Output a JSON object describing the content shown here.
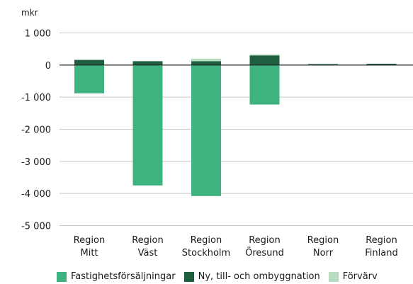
{
  "chart_data": {
    "type": "bar",
    "stacked": true,
    "unit_label": "mkr",
    "categories": [
      [
        "Region",
        "Mitt"
      ],
      [
        "Region",
        "Väst"
      ],
      [
        "Region",
        "Stockholm"
      ],
      [
        "Region",
        "Öresund"
      ],
      [
        "Region",
        "Norr"
      ],
      [
        "Region",
        "Finland"
      ]
    ],
    "series": [
      {
        "name": "Fastighetsförsäljningar",
        "color": "#3fb37f",
        "values": [
          -880,
          -3750,
          -4080,
          -1230,
          0,
          0
        ]
      },
      {
        "name": "Ny, till- och ombyggnation",
        "color": "#1f5e3f",
        "values": [
          160,
          120,
          120,
          300,
          30,
          40
        ]
      },
      {
        "name": "Förvärv",
        "color": "#b8dcc1",
        "values": [
          0,
          0,
          80,
          30,
          0,
          0
        ]
      }
    ],
    "y_ticks": [
      1000,
      0,
      -1000,
      -2000,
      -3000,
      -4000,
      -5000
    ],
    "y_tick_labels": [
      "1 000",
      "0",
      "-1 000",
      "-2 000",
      "-3 000",
      "-4 000",
      "-5 000"
    ],
    "ylim": [
      -5000,
      1000
    ],
    "grid": true,
    "legend_position": "bottom"
  }
}
